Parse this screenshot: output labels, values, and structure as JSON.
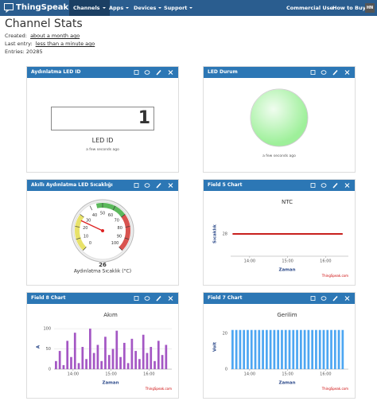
{
  "navbar": {
    "brand": "ThingSpeak™",
    "menu": [
      "Channels",
      "Apps",
      "Devices",
      "Support"
    ],
    "right": [
      "Commercial Use",
      "How to Buy"
    ],
    "avatar": "HN"
  },
  "header": {
    "title": "Channel Stats",
    "created_label": "Created:",
    "created": "about a month ago",
    "last_entry_label": "Last entry:",
    "last_entry": "less than a minute ago",
    "entries_label": "Entries:",
    "entries": 20285
  },
  "widgets": [
    {
      "title": "Aydınlatma LED ID",
      "value": 1,
      "label": "LED ID",
      "updated": "a few seconds ago"
    },
    {
      "title": "LED Durum",
      "color": "#9ef09a",
      "updated": "a few seconds ago"
    },
    {
      "title": "Akıllı Aydınlatma LED Sıcaklığı",
      "gauge": {
        "value": 26,
        "label": "Aydınlatma Sıcaklık (°C)",
        "min": 0,
        "max": 100,
        "ticks": [
          0,
          10,
          20,
          30,
          40,
          50,
          60,
          70,
          80,
          90,
          100
        ],
        "bands": [
          {
            "from": 0,
            "to": 30,
            "color": "#e8e26a"
          },
          {
            "from": 45,
            "to": 70,
            "color": "#5cb85c"
          },
          {
            "from": 70,
            "to": 100,
            "color": "#d9534f"
          }
        ]
      }
    },
    {
      "title": "Field 5 Chart",
      "chart": {
        "type": "line",
        "title": "NTC",
        "y_label": "Sıcaklık",
        "x_label": "Zaman",
        "credit": "ThingSpeak.com",
        "color": "#c8201e",
        "x": [
          13.55,
          14.5,
          15.5,
          16.45
        ],
        "values": [
          28,
          28,
          28,
          28
        ],
        "xlim": [
          13.5,
          16.6
        ],
        "ylim": [
          26,
          30
        ],
        "yticks": [
          28
        ],
        "xticks": [
          {
            "value": 14,
            "label": "14:00"
          },
          {
            "value": 15,
            "label": "15:00"
          },
          {
            "value": 16,
            "label": "16:00"
          }
        ],
        "grid": false
      }
    },
    {
      "title": "Field 8 Chart",
      "chart": {
        "type": "bar",
        "title": "Akım",
        "y_label": "A",
        "x_label": "Zaman",
        "credit": "ThingSpeak.com",
        "color": "#a457c4",
        "x": [
          13.55,
          13.65,
          13.75,
          13.85,
          13.95,
          14.05,
          14.15,
          14.25,
          14.35,
          14.45,
          14.55,
          14.65,
          14.75,
          14.85,
          14.95,
          15.05,
          15.15,
          15.25,
          15.35,
          15.45,
          15.55,
          15.65,
          15.75,
          15.85,
          15.95,
          16.05,
          16.15,
          16.25,
          16.35,
          16.45
        ],
        "values": [
          20,
          45,
          10,
          70,
          30,
          90,
          15,
          55,
          25,
          100,
          40,
          60,
          20,
          80,
          35,
          50,
          95,
          30,
          65,
          15,
          75,
          45,
          25,
          85,
          40,
          55,
          20,
          70,
          35,
          60
        ],
        "xlim": [
          13.5,
          16.6
        ],
        "ylim": [
          0,
          110
        ],
        "yticks": [
          0,
          50,
          100
        ],
        "xticks": [
          {
            "value": 14,
            "label": "14:00"
          },
          {
            "value": 15,
            "label": "15:00"
          },
          {
            "value": 16,
            "label": "16:00"
          }
        ],
        "grid": true
      }
    },
    {
      "title": "Field 7 Chart",
      "chart": {
        "type": "bar",
        "title": "Gerilim",
        "y_label": "Volt",
        "x_label": "Zaman",
        "credit": "ThingSpeak.com",
        "color": "#4da6f2",
        "x": [
          13.55,
          13.65,
          13.75,
          13.85,
          13.95,
          14.05,
          14.15,
          14.25,
          14.35,
          14.45,
          14.55,
          14.65,
          14.75,
          14.85,
          14.95,
          15.05,
          15.15,
          15.25,
          15.35,
          15.45,
          15.55,
          15.65,
          15.75,
          15.85,
          15.95,
          16.05,
          16.15,
          16.25,
          16.35,
          16.45
        ],
        "values": [
          22,
          22,
          22,
          22,
          22,
          22,
          22,
          22,
          22,
          22,
          22,
          22,
          22,
          22,
          22,
          22,
          22,
          22,
          22,
          22,
          22,
          22,
          22,
          22,
          22,
          22,
          22,
          22,
          22,
          22
        ],
        "xlim": [
          13.5,
          16.6
        ],
        "ylim": [
          0,
          25
        ],
        "yticks": [
          0,
          20
        ],
        "xticks": [
          {
            "value": 14,
            "label": "14:00"
          },
          {
            "value": 15,
            "label": "15:00"
          },
          {
            "value": 16,
            "label": "16:00"
          }
        ],
        "grid": false
      }
    }
  ]
}
